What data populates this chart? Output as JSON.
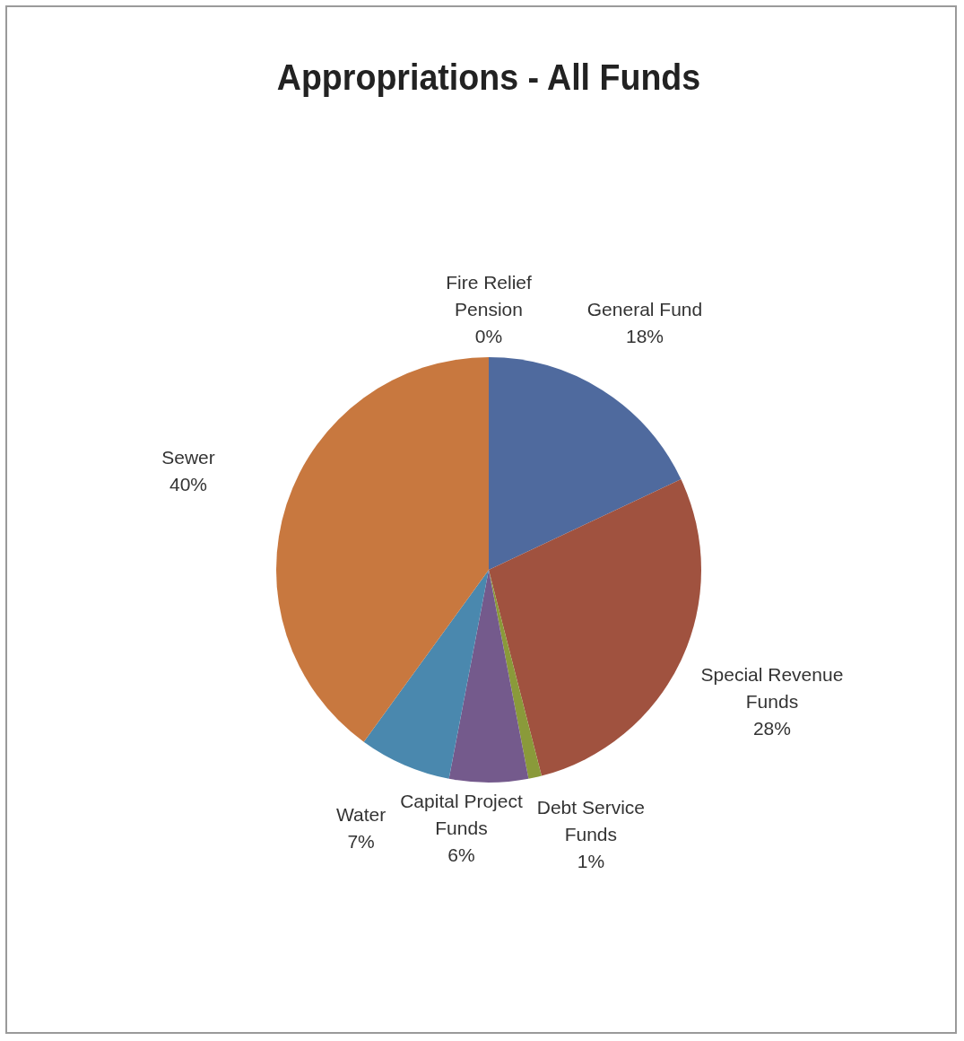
{
  "chart_data": {
    "type": "pie",
    "title": "Appropriations - All Funds",
    "categories": [
      "General Fund",
      "Special Revenue Funds",
      "Debt Service Funds",
      "Capital Project Funds",
      "Water",
      "Sewer",
      "Fire Relief Pension"
    ],
    "values": [
      18,
      28,
      1,
      6,
      7,
      40,
      0
    ],
    "colors": [
      "#4f6a9e",
      "#a0523f",
      "#8a9a3a",
      "#745a8c",
      "#4a88ae",
      "#c8783f",
      "#3fa0b4"
    ],
    "value_labels": [
      "18%",
      "28%",
      "1%",
      "6%",
      "7%",
      "40%",
      "0%"
    ]
  }
}
